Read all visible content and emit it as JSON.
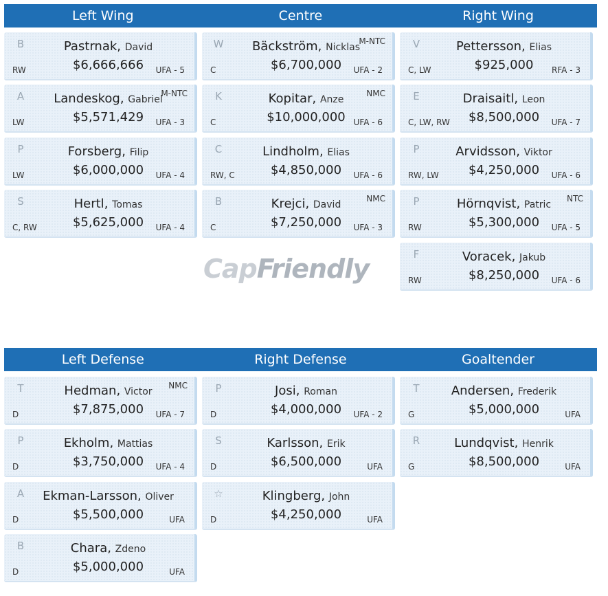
{
  "forwards": {
    "headers": [
      "Left Wing",
      "Centre",
      "Right Wing"
    ],
    "columns": [
      [
        {
          "last": "Pastrnak",
          "first": "David",
          "salary": "$6,666,666",
          "pos": "RW",
          "contract": "UFA - 5",
          "clause": "",
          "logo": "boston-bruins-icon",
          "glyph": "B"
        },
        {
          "last": "Landeskog",
          "first": "Gabriel",
          "salary": "$5,571,429",
          "pos": "LW",
          "contract": "UFA - 3",
          "clause": "M-NTC",
          "logo": "colorado-avalanche-icon",
          "glyph": "A"
        },
        {
          "last": "Forsberg",
          "first": "Filip",
          "salary": "$6,000,000",
          "pos": "LW",
          "contract": "UFA - 4",
          "clause": "",
          "logo": "nashville-predators-icon",
          "glyph": "P"
        },
        {
          "last": "Hertl",
          "first": "Tomas",
          "salary": "$5,625,000",
          "pos": "C, RW",
          "contract": "UFA - 4",
          "clause": "",
          "logo": "san-jose-sharks-icon",
          "glyph": "S"
        }
      ],
      [
        {
          "last": "Bäckström",
          "first": "Nicklas",
          "salary": "$6,700,000",
          "pos": "C",
          "contract": "UFA - 2",
          "clause": "M-NTC",
          "logo": "washington-capitals-icon",
          "glyph": "W"
        },
        {
          "last": "Kopitar",
          "first": "Anze",
          "salary": "$10,000,000",
          "pos": "C",
          "contract": "UFA - 6",
          "clause": "NMC",
          "logo": "los-angeles-kings-icon",
          "glyph": "K"
        },
        {
          "last": "Lindholm",
          "first": "Elias",
          "salary": "$4,850,000",
          "pos": "RW, C",
          "contract": "UFA - 6",
          "clause": "",
          "logo": "calgary-flames-icon",
          "glyph": "C"
        },
        {
          "last": "Krejci",
          "first": "David",
          "salary": "$7,250,000",
          "pos": "C",
          "contract": "UFA - 3",
          "clause": "NMC",
          "logo": "boston-bruins-icon",
          "glyph": "B"
        }
      ],
      [
        {
          "last": "Pettersson",
          "first": "Elias",
          "salary": "$925,000",
          "pos": "C, LW",
          "contract": "RFA - 3",
          "clause": "",
          "logo": "vancouver-canucks-icon",
          "glyph": "V"
        },
        {
          "last": "Draisaitl",
          "first": "Leon",
          "salary": "$8,500,000",
          "pos": "C, LW, RW",
          "contract": "UFA - 7",
          "clause": "",
          "logo": "edmonton-oilers-icon",
          "glyph": "E"
        },
        {
          "last": "Arvidsson",
          "first": "Viktor",
          "salary": "$4,250,000",
          "pos": "RW, LW",
          "contract": "UFA - 6",
          "clause": "",
          "logo": "nashville-predators-icon",
          "glyph": "P"
        },
        {
          "last": "Hörnqvist",
          "first": "Patric",
          "salary": "$5,300,000",
          "pos": "RW",
          "contract": "UFA - 5",
          "clause": "NTC",
          "logo": "pittsburgh-penguins-icon",
          "glyph": "P"
        },
        {
          "last": "Voracek",
          "first": "Jakub",
          "salary": "$8,250,000",
          "pos": "RW",
          "contract": "UFA - 6",
          "clause": "",
          "logo": "philadelphia-flyers-icon",
          "glyph": "F"
        }
      ]
    ]
  },
  "defense": {
    "headers": [
      "Left Defense",
      "Right Defense",
      "Goaltender"
    ],
    "columns": [
      [
        {
          "last": "Hedman",
          "first": "Victor",
          "salary": "$7,875,000",
          "pos": "D",
          "contract": "UFA - 7",
          "clause": "NMC",
          "logo": "tampa-bay-lightning-icon",
          "glyph": "T"
        },
        {
          "last": "Ekholm",
          "first": "Mattias",
          "salary": "$3,750,000",
          "pos": "D",
          "contract": "UFA - 4",
          "clause": "",
          "logo": "nashville-predators-icon",
          "glyph": "P"
        },
        {
          "last": "Ekman-Larsson",
          "first": "Oliver",
          "salary": "$5,500,000",
          "pos": "D",
          "contract": "UFA",
          "clause": "",
          "logo": "arizona-coyotes-icon",
          "glyph": "A"
        },
        {
          "last": "Chara",
          "first": "Zdeno",
          "salary": "$5,000,000",
          "pos": "D",
          "contract": "UFA",
          "clause": "",
          "logo": "boston-bruins-icon",
          "glyph": "B"
        }
      ],
      [
        {
          "last": "Josi",
          "first": "Roman",
          "salary": "$4,000,000",
          "pos": "D",
          "contract": "UFA - 2",
          "clause": "",
          "logo": "nashville-predators-icon",
          "glyph": "P"
        },
        {
          "last": "Karlsson",
          "first": "Erik",
          "salary": "$6,500,000",
          "pos": "D",
          "contract": "UFA",
          "clause": "",
          "logo": "san-jose-sharks-icon",
          "glyph": "S"
        },
        {
          "last": "Klingberg",
          "first": "John",
          "salary": "$4,250,000",
          "pos": "D",
          "contract": "UFA",
          "clause": "",
          "logo": "dallas-stars-icon",
          "glyph": "☆"
        }
      ],
      [
        {
          "last": "Andersen",
          "first": "Frederik",
          "salary": "$5,000,000",
          "pos": "G",
          "contract": "UFA",
          "clause": "",
          "logo": "toronto-maple-leafs-icon",
          "glyph": "T"
        },
        {
          "last": "Lundqvist",
          "first": "Henrik",
          "salary": "$8,500,000",
          "pos": "G",
          "contract": "UFA",
          "clause": "",
          "logo": "new-york-rangers-icon",
          "glyph": "R"
        }
      ]
    ]
  },
  "watermark": {
    "text_cap": "Cap",
    "text_friendly": "Friendly"
  }
}
